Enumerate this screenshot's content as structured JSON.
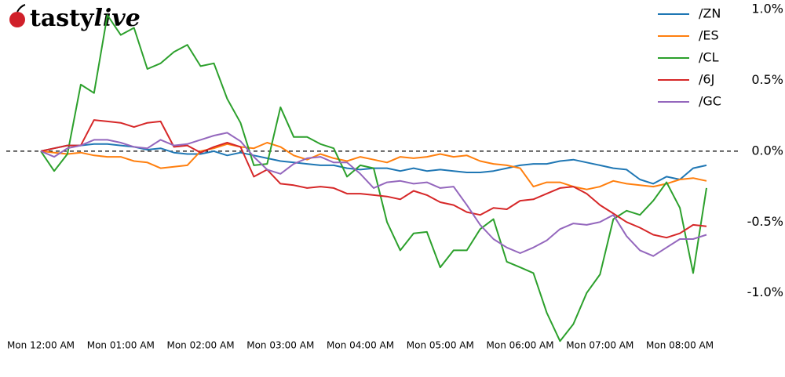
{
  "logo": [
    "tasty",
    "live"
  ],
  "chart_data": {
    "type": "line",
    "categories": [
      "Mon 12:00 AM",
      null,
      null,
      null,
      null,
      null,
      "Mon 01:00 AM",
      null,
      null,
      null,
      null,
      null,
      "Mon 02:00 AM",
      null,
      null,
      null,
      null,
      null,
      "Mon 03:00 AM",
      null,
      null,
      null,
      null,
      null,
      "Mon 04:00 AM",
      null,
      null,
      null,
      null,
      null,
      "Mon 05:00 AM",
      null,
      null,
      null,
      null,
      null,
      "Mon 06:00 AM",
      null,
      null,
      null,
      null,
      null,
      "Mon 07:00 AM",
      null,
      null,
      null,
      null,
      null,
      "Mon 08:00 AM",
      null,
      null
    ],
    "series": [
      {
        "name": "/ZN",
        "color": "#1f77b4",
        "values": [
          0,
          0.02,
          0.04,
          0.04,
          0.05,
          0.05,
          0.04,
          0.03,
          0.01,
          0.02,
          -0.01,
          -0.02,
          -0.02,
          0.0,
          -0.03,
          -0.01,
          -0.03,
          -0.05,
          -0.07,
          -0.08,
          -0.09,
          -0.1,
          -0.1,
          -0.12,
          -0.13,
          -0.12,
          -0.12,
          -0.14,
          -0.12,
          -0.14,
          -0.13,
          -0.14,
          -0.15,
          -0.15,
          -0.14,
          -0.12,
          -0.1,
          -0.09,
          -0.09,
          -0.07,
          -0.06,
          -0.08,
          -0.1,
          -0.12,
          -0.13,
          -0.2,
          -0.23,
          -0.18,
          -0.2,
          -0.12,
          -0.1
        ]
      },
      {
        "name": "/ES",
        "color": "#ff7f0e",
        "values": [
          0,
          -0.01,
          -0.02,
          -0.01,
          -0.03,
          -0.04,
          -0.04,
          -0.07,
          -0.08,
          -0.12,
          -0.11,
          -0.1,
          0.0,
          0.02,
          0.05,
          0.03,
          0.02,
          0.06,
          0.03,
          -0.03,
          -0.06,
          -0.02,
          -0.05,
          -0.07,
          -0.04,
          -0.06,
          -0.08,
          -0.04,
          -0.05,
          -0.04,
          -0.02,
          -0.04,
          -0.03,
          -0.07,
          -0.09,
          -0.1,
          -0.12,
          -0.25,
          -0.22,
          -0.22,
          -0.25,
          -0.27,
          -0.25,
          -0.21,
          -0.23,
          -0.24,
          -0.25,
          -0.23,
          -0.2,
          -0.19,
          -0.21
        ]
      },
      {
        "name": "/CL",
        "color": "#2ca02c",
        "values": [
          0,
          -0.14,
          -0.02,
          0.47,
          0.41,
          0.96,
          0.82,
          0.87,
          0.58,
          0.62,
          0.7,
          0.75,
          0.6,
          0.62,
          0.37,
          0.2,
          -0.1,
          -0.09,
          0.31,
          0.1,
          0.1,
          0.05,
          0.02,
          -0.18,
          -0.1,
          -0.12,
          -0.5,
          -0.7,
          -0.58,
          -0.57,
          -0.82,
          -0.7,
          -0.7,
          -0.55,
          -0.48,
          -0.78,
          -0.82,
          -0.86,
          -1.14,
          -1.34,
          -1.22,
          -1.0,
          -0.87,
          -0.48,
          -0.42,
          -0.45,
          -0.35,
          -0.22,
          -0.4,
          -0.86,
          -0.26
        ]
      },
      {
        "name": "/6J",
        "color": "#d62728",
        "values": [
          0,
          0.02,
          0.04,
          0.04,
          0.22,
          0.21,
          0.2,
          0.17,
          0.2,
          0.21,
          0.03,
          0.04,
          -0.01,
          0.03,
          0.06,
          0.03,
          -0.18,
          -0.13,
          -0.23,
          -0.24,
          -0.26,
          -0.25,
          -0.26,
          -0.3,
          -0.3,
          -0.31,
          -0.32,
          -0.34,
          -0.28,
          -0.31,
          -0.36,
          -0.38,
          -0.43,
          -0.45,
          -0.4,
          -0.41,
          -0.35,
          -0.34,
          -0.3,
          -0.26,
          -0.25,
          -0.3,
          -0.38,
          -0.44,
          -0.5,
          -0.54,
          -0.59,
          -0.61,
          -0.58,
          -0.52,
          -0.53
        ]
      },
      {
        "name": "/GC",
        "color": "#9467bd",
        "values": [
          0,
          -0.04,
          0.02,
          0.04,
          0.08,
          0.08,
          0.06,
          0.03,
          0.02,
          0.08,
          0.04,
          0.05,
          0.08,
          0.11,
          0.13,
          0.07,
          -0.04,
          -0.13,
          -0.16,
          -0.09,
          -0.05,
          -0.04,
          -0.08,
          -0.08,
          -0.16,
          -0.26,
          -0.22,
          -0.21,
          -0.23,
          -0.22,
          -0.26,
          -0.25,
          -0.38,
          -0.52,
          -0.62,
          -0.68,
          -0.72,
          -0.68,
          -0.63,
          -0.55,
          -0.51,
          -0.52,
          -0.5,
          -0.45,
          -0.6,
          -0.7,
          -0.74,
          -0.68,
          -0.62,
          -0.62,
          -0.59
        ]
      }
    ],
    "ylim": [
      -1.4,
      1.05
    ],
    "yticks": [
      {
        "value": 1.0,
        "label": "1.0%"
      },
      {
        "value": 0.5,
        "label": "0.5%"
      },
      {
        "value": 0.0,
        "label": "0.0%"
      },
      {
        "value": -0.5,
        "label": "-0.5%"
      },
      {
        "value": -1.0,
        "label": "-1.0%"
      }
    ],
    "hline": 0,
    "legend": "upper right"
  }
}
